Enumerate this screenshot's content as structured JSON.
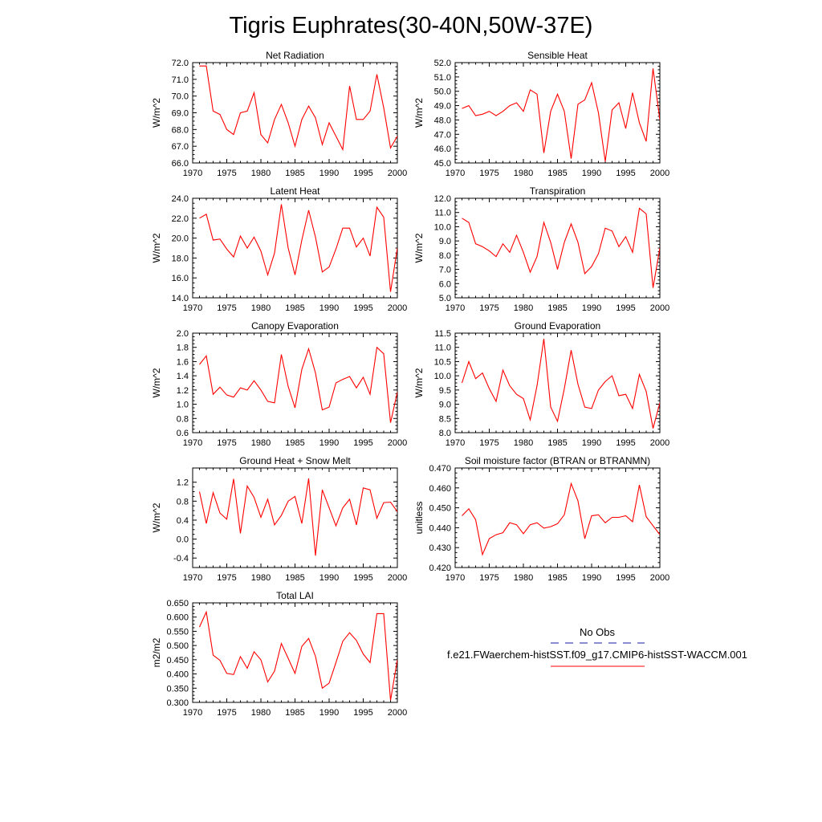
{
  "title": "Tigris Euphrates(30-40N,50W-37E)",
  "line_color": "#ff0000",
  "chart_data": [
    {
      "type": "line",
      "title": "Net Radiation",
      "ylabel": "W/m^2",
      "xlim": [
        1970,
        2000
      ],
      "ylim": [
        66.0,
        72.0
      ],
      "xticks": [
        "1970",
        "1975",
        "1980",
        "1985",
        "1990",
        "1995",
        "2000"
      ],
      "yticks": [
        "66.0",
        "67.0",
        "68.0",
        "69.0",
        "70.0",
        "71.0",
        "72.0"
      ],
      "x": [
        1971,
        1972,
        1973,
        1974,
        1975,
        1976,
        1977,
        1978,
        1979,
        1980,
        1981,
        1982,
        1983,
        1984,
        1985,
        1986,
        1987,
        1988,
        1989,
        1990,
        1991,
        1992,
        1993,
        1994,
        1995,
        1996,
        1997,
        1998,
        1999,
        2000
      ],
      "y": [
        71.8,
        71.8,
        69.1,
        68.9,
        68.0,
        67.7,
        69.0,
        69.1,
        70.2,
        67.7,
        67.2,
        68.6,
        69.5,
        68.4,
        67.0,
        68.6,
        69.4,
        68.7,
        67.1,
        68.4,
        67.6,
        66.8,
        70.6,
        68.6,
        68.6,
        69.1,
        71.3,
        69.3,
        66.9,
        67.6
      ]
    },
    {
      "type": "line",
      "title": "Sensible Heat",
      "ylabel": "W/m^2",
      "xlim": [
        1970,
        2000
      ],
      "ylim": [
        45.0,
        52.0
      ],
      "xticks": [
        "1970",
        "1975",
        "1980",
        "1985",
        "1990",
        "1995",
        "2000"
      ],
      "yticks": [
        "45.0",
        "46.0",
        "47.0",
        "48.0",
        "49.0",
        "50.0",
        "51.0",
        "52.0"
      ],
      "x": [
        1971,
        1972,
        1973,
        1974,
        1975,
        1976,
        1977,
        1978,
        1979,
        1980,
        1981,
        1982,
        1983,
        1984,
        1985,
        1986,
        1987,
        1988,
        1989,
        1990,
        1991,
        1992,
        1993,
        1994,
        1995,
        1996,
        1997,
        1998,
        1999,
        2000
      ],
      "y": [
        48.8,
        49.0,
        48.3,
        48.4,
        48.6,
        48.3,
        48.6,
        49.0,
        49.2,
        48.6,
        50.1,
        49.8,
        45.7,
        48.6,
        49.8,
        48.6,
        45.3,
        49.1,
        49.4,
        50.6,
        48.5,
        45.1,
        48.7,
        49.2,
        47.4,
        49.9,
        47.8,
        46.5,
        51.6,
        48.0
      ]
    },
    {
      "type": "line",
      "title": "Latent Heat",
      "ylabel": "W/m^2",
      "xlim": [
        1970,
        2000
      ],
      "ylim": [
        14.0,
        24.0
      ],
      "xticks": [
        "1970",
        "1975",
        "1980",
        "1985",
        "1990",
        "1995",
        "2000"
      ],
      "yticks": [
        "14.0",
        "16.0",
        "18.0",
        "20.0",
        "22.0",
        "24.0"
      ],
      "x": [
        1971,
        1972,
        1973,
        1974,
        1975,
        1976,
        1977,
        1978,
        1979,
        1980,
        1981,
        1982,
        1983,
        1984,
        1985,
        1986,
        1987,
        1988,
        1989,
        1990,
        1991,
        1992,
        1993,
        1994,
        1995,
        1996,
        1997,
        1998,
        1999,
        2000
      ],
      "y": [
        22.0,
        22.4,
        19.8,
        19.9,
        18.9,
        18.1,
        20.2,
        19.0,
        20.1,
        18.7,
        16.3,
        18.5,
        23.4,
        19.0,
        16.3,
        19.8,
        22.8,
        20.1,
        16.6,
        17.1,
        18.9,
        21.0,
        21.0,
        19.1,
        20.0,
        18.2,
        23.1,
        22.1,
        14.6,
        19.0
      ]
    },
    {
      "type": "line",
      "title": "Transpiration",
      "ylabel": "W/m^2",
      "xlim": [
        1970,
        2000
      ],
      "ylim": [
        5.0,
        12.0
      ],
      "xticks": [
        "1970",
        "1975",
        "1980",
        "1985",
        "1990",
        "1995",
        "2000"
      ],
      "yticks": [
        "5.0",
        "6.0",
        "7.0",
        "8.0",
        "9.0",
        "10.0",
        "11.0",
        "12.0"
      ],
      "x": [
        1971,
        1972,
        1973,
        1974,
        1975,
        1976,
        1977,
        1978,
        1979,
        1980,
        1981,
        1982,
        1983,
        1984,
        1985,
        1986,
        1987,
        1988,
        1989,
        1990,
        1991,
        1992,
        1993,
        1994,
        1995,
        1996,
        1997,
        1998,
        1999,
        2000
      ],
      "y": [
        10.6,
        10.3,
        8.8,
        8.6,
        8.3,
        7.9,
        8.8,
        8.2,
        9.4,
        8.2,
        6.8,
        7.9,
        10.3,
        8.9,
        7.0,
        8.9,
        10.2,
        8.9,
        6.7,
        7.2,
        8.1,
        9.9,
        9.7,
        8.6,
        9.3,
        8.2,
        11.3,
        10.9,
        5.7,
        8.5
      ]
    },
    {
      "type": "line",
      "title": "Canopy Evaporation",
      "ylabel": "W/m^2",
      "xlim": [
        1970,
        2000
      ],
      "ylim": [
        0.6,
        2.0
      ],
      "xticks": [
        "1970",
        "1975",
        "1980",
        "1985",
        "1990",
        "1995",
        "2000"
      ],
      "yticks": [
        "0.6",
        "0.8",
        "1.0",
        "1.2",
        "1.4",
        "1.6",
        "1.8",
        "2.0"
      ],
      "x": [
        1971,
        1972,
        1973,
        1974,
        1975,
        1976,
        1977,
        1978,
        1979,
        1980,
        1981,
        1982,
        1983,
        1984,
        1985,
        1986,
        1987,
        1988,
        1989,
        1990,
        1991,
        1992,
        1993,
        1994,
        1995,
        1996,
        1997,
        1998,
        1999,
        2000
      ],
      "y": [
        1.56,
        1.68,
        1.14,
        1.24,
        1.13,
        1.1,
        1.23,
        1.2,
        1.33,
        1.2,
        1.04,
        1.02,
        1.7,
        1.25,
        0.95,
        1.49,
        1.78,
        1.44,
        0.92,
        0.96,
        1.3,
        1.35,
        1.39,
        1.23,
        1.38,
        1.14,
        1.8,
        1.71,
        0.74,
        1.17
      ]
    },
    {
      "type": "line",
      "title": "Ground Evaporation",
      "ylabel": "W/m^2",
      "xlim": [
        1970,
        2000
      ],
      "ylim": [
        8.0,
        11.5
      ],
      "xticks": [
        "1970",
        "1975",
        "1980",
        "1985",
        "1990",
        "1995",
        "2000"
      ],
      "yticks": [
        "8.0",
        "8.5",
        "9.0",
        "9.5",
        "10.0",
        "10.5",
        "11.0",
        "11.5"
      ],
      "x": [
        1971,
        1972,
        1973,
        1974,
        1975,
        1976,
        1977,
        1978,
        1979,
        1980,
        1981,
        1982,
        1983,
        1984,
        1985,
        1986,
        1987,
        1988,
        1989,
        1990,
        1991,
        1992,
        1993,
        1994,
        1995,
        1996,
        1997,
        1998,
        1999,
        2000
      ],
      "y": [
        9.75,
        10.5,
        9.9,
        10.1,
        9.55,
        9.1,
        10.2,
        9.65,
        9.35,
        9.2,
        8.45,
        9.65,
        11.3,
        8.9,
        8.4,
        9.55,
        10.9,
        9.7,
        8.9,
        8.85,
        9.5,
        9.8,
        10.0,
        9.3,
        9.35,
        8.85,
        10.05,
        9.45,
        8.15,
        9.05
      ]
    },
    {
      "type": "line",
      "title": "Ground Heat + Snow Melt",
      "ylabel": "W/m^2",
      "xlim": [
        1970,
        2000
      ],
      "ylim": [
        -0.6,
        1.5
      ],
      "xticks": [
        "1970",
        "1975",
        "1980",
        "1985",
        "1990",
        "1995",
        "2000"
      ],
      "yticks": [
        "-0.4",
        "0.0",
        "0.4",
        "0.8",
        "1.2"
      ],
      "ytick_values": [
        -0.4,
        0.0,
        0.4,
        0.8,
        1.2
      ],
      "x": [
        1971,
        1972,
        1973,
        1974,
        1975,
        1976,
        1977,
        1978,
        1979,
        1980,
        1981,
        1982,
        1983,
        1984,
        1985,
        1986,
        1987,
        1988,
        1989,
        1990,
        1991,
        1992,
        1993,
        1994,
        1995,
        1996,
        1997,
        1998,
        1999,
        2000
      ],
      "y": [
        1.0,
        0.33,
        0.98,
        0.55,
        0.42,
        1.27,
        0.12,
        1.12,
        0.88,
        0.46,
        0.84,
        0.3,
        0.5,
        0.8,
        0.9,
        0.33,
        1.28,
        -0.35,
        1.04,
        0.66,
        0.28,
        0.66,
        0.84,
        0.3,
        1.08,
        1.04,
        0.44,
        0.77,
        0.78,
        0.58
      ]
    },
    {
      "type": "line",
      "title": "Soil moisture factor (BTRAN or BTRANMN)",
      "ylabel": "unitless",
      "xlim": [
        1970,
        2000
      ],
      "ylim": [
        0.42,
        0.47
      ],
      "xticks": [
        "1970",
        "1975",
        "1980",
        "1985",
        "1990",
        "1995",
        "2000"
      ],
      "yticks": [
        "0.420",
        "0.430",
        "0.440",
        "0.450",
        "0.460",
        "0.470"
      ],
      "x": [
        1971,
        1972,
        1973,
        1974,
        1975,
        1976,
        1977,
        1978,
        1979,
        1980,
        1981,
        1982,
        1983,
        1984,
        1985,
        1986,
        1987,
        1988,
        1989,
        1990,
        1991,
        1992,
        1993,
        1994,
        1995,
        1996,
        1997,
        1998,
        1999,
        2000
      ],
      "y": [
        0.446,
        0.4495,
        0.444,
        0.4265,
        0.4345,
        0.4365,
        0.4375,
        0.4425,
        0.4415,
        0.437,
        0.4415,
        0.4425,
        0.4398,
        0.4405,
        0.442,
        0.4465,
        0.4622,
        0.4535,
        0.4345,
        0.446,
        0.4465,
        0.4425,
        0.4452,
        0.4452,
        0.446,
        0.443,
        0.4615,
        0.4455,
        0.441,
        0.4365
      ]
    },
    {
      "type": "line",
      "title": "Total LAI",
      "ylabel": "m2/m2",
      "xlim": [
        1970,
        2000
      ],
      "ylim": [
        0.3,
        0.65
      ],
      "xticks": [
        "1970",
        "1975",
        "1980",
        "1985",
        "1990",
        "1995",
        "2000"
      ],
      "yticks": [
        "0.300",
        "0.350",
        "0.400",
        "0.450",
        "0.500",
        "0.550",
        "0.600",
        "0.650"
      ],
      "x": [
        1971,
        1972,
        1973,
        1974,
        1975,
        1976,
        1977,
        1978,
        1979,
        1980,
        1981,
        1982,
        1983,
        1984,
        1985,
        1986,
        1987,
        1988,
        1989,
        1990,
        1991,
        1992,
        1993,
        1994,
        1995,
        1996,
        1997,
        1998,
        1999,
        2000
      ],
      "y": [
        0.565,
        0.618,
        0.466,
        0.448,
        0.402,
        0.398,
        0.461,
        0.42,
        0.478,
        0.45,
        0.372,
        0.41,
        0.507,
        0.455,
        0.402,
        0.497,
        0.525,
        0.462,
        0.35,
        0.368,
        0.44,
        0.515,
        0.545,
        0.518,
        0.47,
        0.44,
        0.612,
        0.612,
        0.307,
        0.45
      ]
    }
  ],
  "legend": {
    "obs_label": "No Obs",
    "obs_color": "#1a1aa0",
    "model_label": "f.e21.FWaerchem-histSST.f09_g17.CMIP6-histSST-WACCM.001",
    "model_color": "#ff0000"
  }
}
